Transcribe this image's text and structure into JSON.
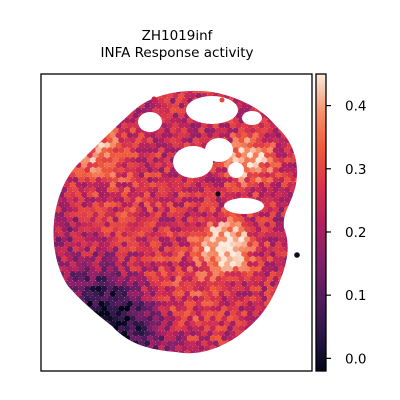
{
  "chart_data": {
    "type": "heatmap",
    "title": "ZH1019inf",
    "subtitle": "INFA Response activity",
    "xlabel": "",
    "ylabel": "",
    "colorbar": {
      "range": [
        -0.02,
        0.45
      ],
      "ticks": [
        0.0,
        0.1,
        0.2,
        0.3,
        0.4
      ],
      "tick_labels": [
        "0.0",
        "0.1",
        "0.2",
        "0.3",
        "0.4"
      ],
      "colormap": "rocket"
    },
    "grid": false,
    "legend": "none",
    "hotspots": [
      {
        "name": "right-center bright region",
        "value": 0.44
      },
      {
        "name": "upper-right bright region",
        "value": 0.42
      },
      {
        "name": "upper-left bright region",
        "value": 0.36
      },
      {
        "name": "lower-left dark region",
        "value": 0.0
      }
    ]
  }
}
